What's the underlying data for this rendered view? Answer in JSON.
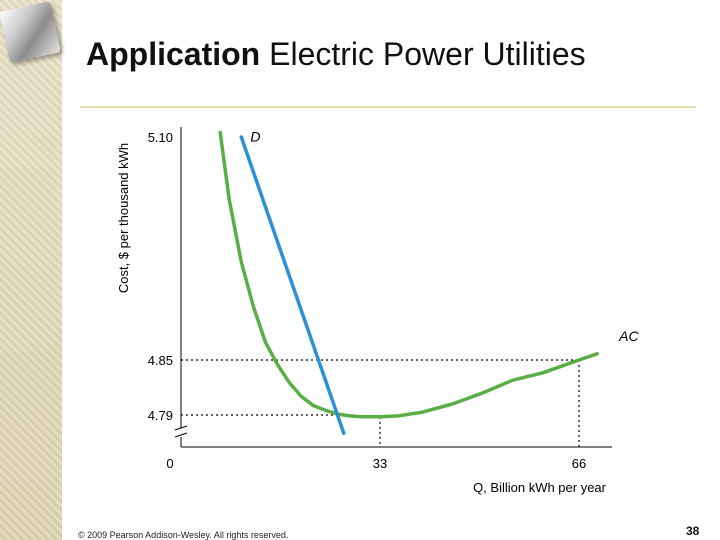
{
  "slide": {
    "title_bold": "Application",
    "title_rest": " Electric Power Utilities",
    "copyright": "© 2009 Pearson Addison-Wesley. All rights reserved.",
    "page_number": "38"
  },
  "chart_data": {
    "type": "line",
    "title": "",
    "xlabel": "Q, Billion kWh per year",
    "ylabel": "Cost, $ per thousand kWh",
    "xlim": [
      0,
      75
    ],
    "ylim_label": "broken y-axis (break above 0)",
    "x_ticks": [
      0,
      33,
      66
    ],
    "y_ticks": [
      "4.79",
      "4.85",
      "5.10"
    ],
    "x_tick_labels": [
      "0",
      "33",
      "66"
    ],
    "y_tick_labels": [
      "4.79",
      "4.85",
      "5.10"
    ],
    "grid": false,
    "series": [
      {
        "name": "AC",
        "color": "#5aae46",
        "x": [
          6.5,
          8,
          10,
          12,
          14,
          16,
          18,
          20,
          22,
          24,
          26,
          28,
          30,
          33,
          36,
          40,
          45,
          50,
          55,
          60,
          66,
          69
        ],
        "y": [
          5.105,
          5.03,
          4.96,
          4.91,
          4.87,
          4.845,
          4.825,
          4.81,
          4.8,
          4.795,
          4.791,
          4.789,
          4.788,
          4.788,
          4.789,
          4.793,
          4.802,
          4.814,
          4.828,
          4.836,
          4.85,
          4.857
        ]
      },
      {
        "name": "D",
        "color": "#2e8fd6",
        "x": [
          10,
          27
        ],
        "y": [
          5.1,
          4.77
        ]
      }
    ],
    "guides": [
      {
        "kind": "h",
        "y": 4.85,
        "x_to": 66
      },
      {
        "kind": "h",
        "y": 4.79,
        "x_to": 27
      },
      {
        "kind": "v",
        "x": 33,
        "y_to": 4.788
      },
      {
        "kind": "v",
        "x": 66,
        "y_to": 4.85
      }
    ],
    "annotations": [
      {
        "text": "D",
        "series": "D"
      },
      {
        "text": "AC",
        "series": "AC"
      }
    ]
  }
}
